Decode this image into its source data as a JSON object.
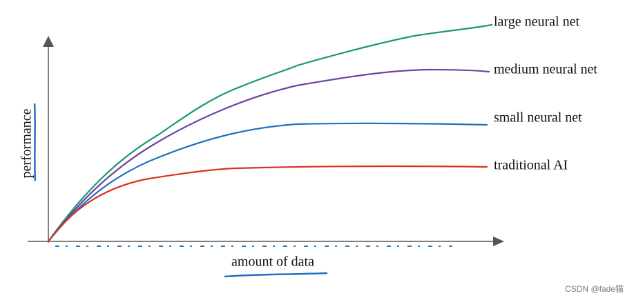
{
  "axes": {
    "y_label": "performance",
    "x_label": "amount of data"
  },
  "curves": [
    {
      "label": "large neural net"
    },
    {
      "label": "medium neural net"
    },
    {
      "label": "small neural net"
    },
    {
      "label": "traditional AI"
    }
  ],
  "watermark": "CSDN @fade猫"
}
